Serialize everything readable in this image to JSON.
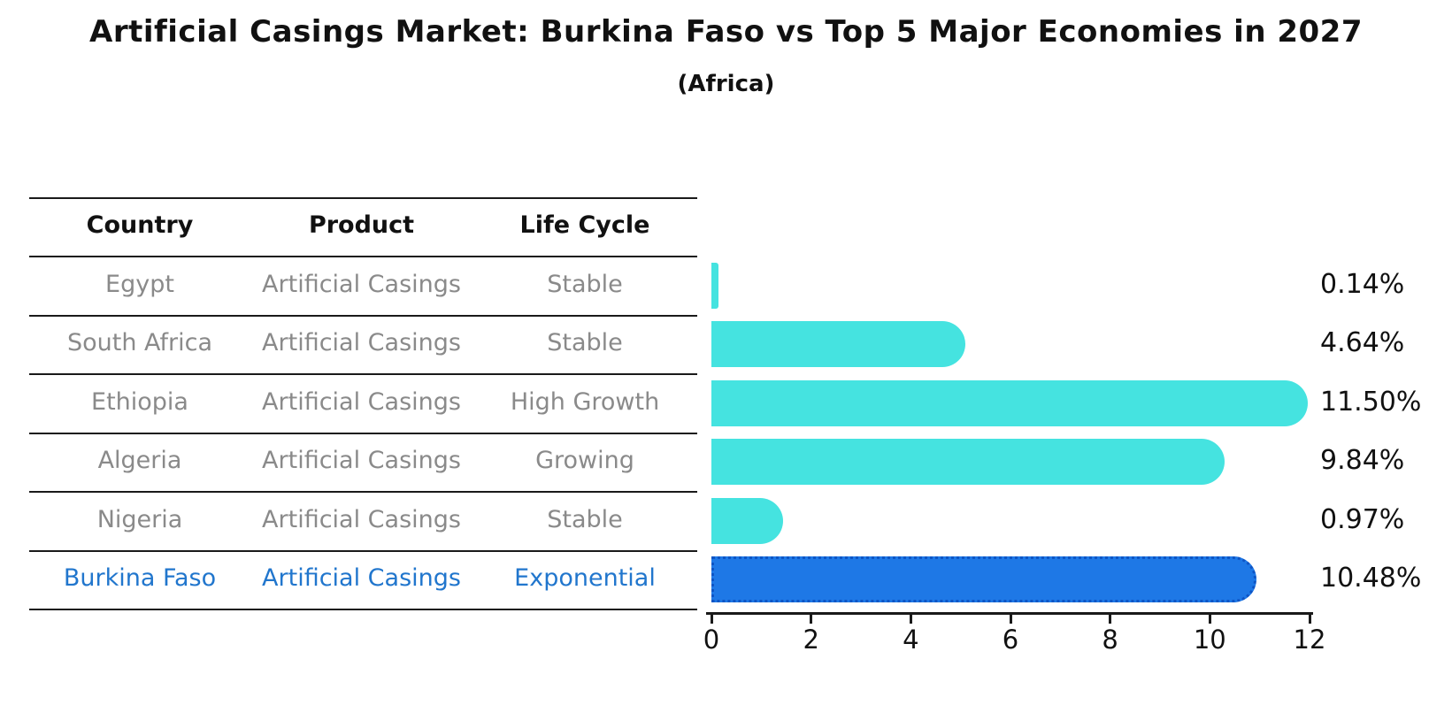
{
  "title": "Artificial Casings Market: Burkina Faso vs Top 5 Major Economies in 2027",
  "subtitle": "(Africa)",
  "table": {
    "headers": [
      "Country",
      "Product",
      "Life Cycle"
    ],
    "rows": [
      {
        "country": "Egypt",
        "product": "Artificial Casings",
        "life_cycle": "Stable",
        "highlighted": false
      },
      {
        "country": "South Africa",
        "product": "Artificial Casings",
        "life_cycle": "Stable",
        "highlighted": false
      },
      {
        "country": "Ethiopia",
        "product": "Artificial Casings",
        "life_cycle": "High Growth",
        "highlighted": false
      },
      {
        "country": "Algeria",
        "product": "Artificial Casings",
        "life_cycle": "Growing",
        "highlighted": false
      },
      {
        "country": "Nigeria",
        "product": "Artificial Casings",
        "life_cycle": "Stable",
        "highlighted": false
      },
      {
        "country": "Burkina Faso",
        "product": "Artificial Casings",
        "life_cycle": "Exponential",
        "highlighted": true
      }
    ]
  },
  "chart_data": {
    "type": "bar",
    "orientation": "horizontal",
    "title": "Artificial Casings Market: Burkina Faso vs Top 5 Major Economies in 2027",
    "subtitle": "(Africa)",
    "categories": [
      "Egypt",
      "South Africa",
      "Ethiopia",
      "Algeria",
      "Nigeria",
      "Burkina Faso"
    ],
    "values": [
      0.14,
      4.64,
      11.5,
      9.84,
      0.97,
      10.48
    ],
    "value_labels": [
      "0.14%",
      "4.64%",
      "11.50%",
      "9.84%",
      "0.97%",
      "10.48%"
    ],
    "highlight_index": 5,
    "xlim": [
      0,
      12
    ],
    "xticks": [
      0,
      2,
      4,
      6,
      8,
      10,
      12
    ],
    "xlabel": "",
    "ylabel": "",
    "grid": false,
    "legend": "none"
  },
  "colors": {
    "bar": "#45E3E0",
    "highlight_bar": "#1E78E6",
    "highlight_border": "#0E55C5",
    "highlight_text": "#2176CD",
    "cell_text": "#8A8A8A",
    "header_text": "#111111",
    "axis": "#1A1A1A",
    "value_label": "#111111"
  }
}
